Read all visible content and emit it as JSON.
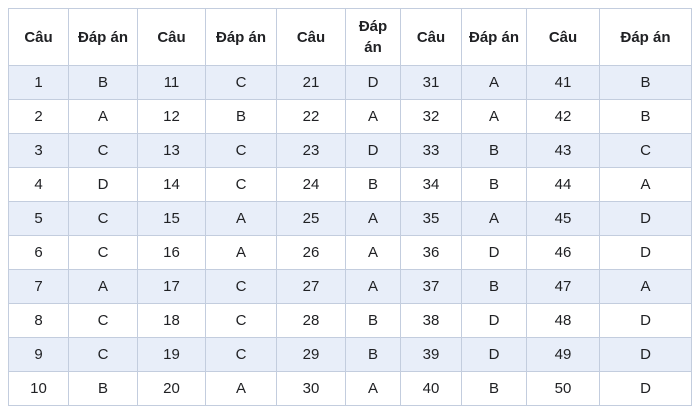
{
  "table": {
    "headers": [
      "Câu",
      "Đáp án",
      "Câu",
      "Đáp án",
      "Câu",
      "Đáp án",
      "Câu",
      "Đáp án",
      "Câu",
      "Đáp án"
    ],
    "rows": [
      [
        "1",
        "B",
        "11",
        "C",
        "21",
        "D",
        "31",
        "A",
        "41",
        "B"
      ],
      [
        "2",
        "A",
        "12",
        "B",
        "22",
        "A",
        "32",
        "A",
        "42",
        "B"
      ],
      [
        "3",
        "C",
        "13",
        "C",
        "23",
        "D",
        "33",
        "B",
        "43",
        "C"
      ],
      [
        "4",
        "D",
        "14",
        "C",
        "24",
        "B",
        "34",
        "B",
        "44",
        "A"
      ],
      [
        "5",
        "C",
        "15",
        "A",
        "25",
        "A",
        "35",
        "A",
        "45",
        "D"
      ],
      [
        "6",
        "C",
        "16",
        "A",
        "26",
        "A",
        "36",
        "D",
        "46",
        "D"
      ],
      [
        "7",
        "A",
        "17",
        "C",
        "27",
        "A",
        "37",
        "B",
        "47",
        "A"
      ],
      [
        "8",
        "C",
        "18",
        "C",
        "28",
        "B",
        "38",
        "D",
        "48",
        "D"
      ],
      [
        "9",
        "C",
        "19",
        "C",
        "29",
        "B",
        "39",
        "D",
        "49",
        "D"
      ],
      [
        "10",
        "B",
        "20",
        "A",
        "30",
        "A",
        "40",
        "B",
        "50",
        "D"
      ]
    ]
  },
  "colors": {
    "stripe": "#e8eef9",
    "border": "#c3cdde",
    "text": "#202124",
    "background": "#ffffff"
  }
}
